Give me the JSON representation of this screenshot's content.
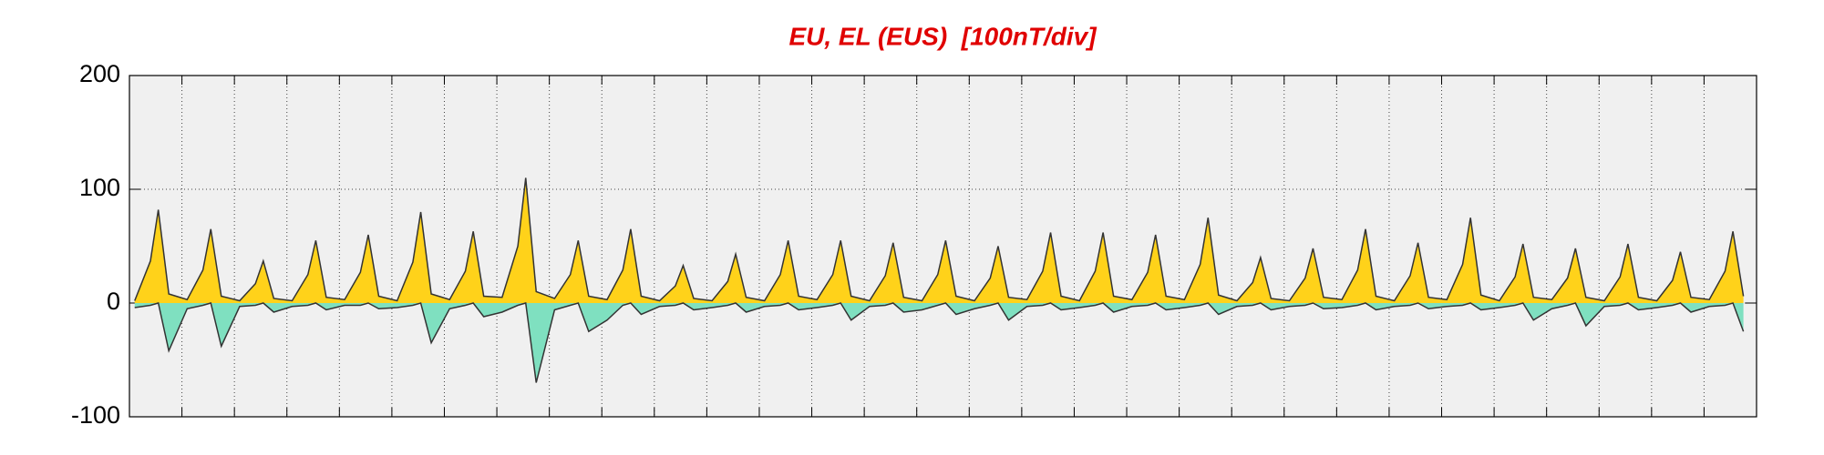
{
  "chart_data": {
    "type": "area",
    "title": "EU, EL (EUS)  [100nT/div]",
    "xlim": [
      0,
      31
    ],
    "xticks": [
      1,
      2,
      3,
      4,
      5,
      6,
      7,
      8,
      9,
      10,
      11,
      12,
      13,
      14,
      15,
      16,
      17,
      18,
      19,
      20,
      21,
      22,
      23,
      24,
      25,
      26,
      27,
      28,
      29,
      30
    ],
    "ylim": [
      -100,
      200
    ],
    "yticks": [
      -100,
      0,
      100,
      200
    ],
    "grid": true,
    "line_color": "#333333",
    "background": "#f0f0f0",
    "x": [
      0.1,
      0.4,
      0.55,
      0.75,
      1.1,
      1.4,
      1.55,
      1.75,
      2.1,
      2.4,
      2.55,
      2.75,
      3.1,
      3.4,
      3.55,
      3.75,
      4.1,
      4.4,
      4.55,
      4.75,
      5.1,
      5.4,
      5.55,
      5.75,
      6.1,
      6.4,
      6.55,
      6.75,
      7.1,
      7.4,
      7.55,
      7.75,
      8.1,
      8.4,
      8.55,
      8.75,
      9.1,
      9.4,
      9.55,
      9.75,
      10.1,
      10.4,
      10.55,
      10.75,
      11.1,
      11.4,
      11.55,
      11.75,
      12.1,
      12.4,
      12.55,
      12.75,
      13.1,
      13.4,
      13.55,
      13.75,
      14.1,
      14.4,
      14.55,
      14.75,
      15.1,
      15.4,
      15.55,
      15.75,
      16.1,
      16.4,
      16.55,
      16.75,
      17.1,
      17.4,
      17.55,
      17.75,
      18.1,
      18.4,
      18.55,
      18.75,
      19.1,
      19.4,
      19.55,
      19.75,
      20.1,
      20.4,
      20.55,
      20.75,
      21.1,
      21.4,
      21.55,
      21.75,
      22.1,
      22.4,
      22.55,
      22.75,
      23.1,
      23.4,
      23.55,
      23.75,
      24.1,
      24.4,
      24.55,
      24.75,
      25.1,
      25.4,
      25.55,
      25.75,
      26.1,
      26.4,
      26.55,
      26.75,
      27.1,
      27.4,
      27.55,
      27.75,
      28.1,
      28.4,
      28.55,
      28.75,
      29.1,
      29.4,
      29.55,
      29.75,
      30.1,
      30.4,
      30.55,
      30.75
    ],
    "series": [
      {
        "color": "#ffd21a",
        "values": [
          2,
          37,
          82,
          8,
          3,
          29,
          65,
          6,
          2,
          17,
          37,
          4,
          2,
          25,
          55,
          5,
          3,
          27,
          60,
          6,
          2,
          36,
          80,
          8,
          3,
          28,
          63,
          6,
          5,
          50,
          110,
          10,
          4,
          25,
          55,
          6,
          3,
          29,
          65,
          6,
          2,
          15,
          33,
          4,
          2,
          19,
          43,
          5,
          2,
          25,
          55,
          6,
          3,
          25,
          55,
          6,
          2,
          24,
          53,
          5,
          2,
          25,
          55,
          6,
          2,
          22,
          50,
          5,
          3,
          28,
          62,
          6,
          2,
          28,
          62,
          6,
          3,
          27,
          60,
          6,
          3,
          34,
          75,
          7,
          2,
          18,
          40,
          4,
          2,
          22,
          48,
          5,
          3,
          29,
          65,
          6,
          2,
          24,
          53,
          5,
          3,
          34,
          75,
          7,
          2,
          23,
          52,
          5,
          3,
          22,
          48,
          5,
          2,
          23,
          52,
          5,
          2,
          20,
          45,
          5,
          3,
          28,
          63,
          6
        ]
      },
      {
        "color": "#7fe0c0",
        "values": [
          -4,
          -2,
          0,
          -42,
          -5,
          -2,
          0,
          -38,
          -3,
          -2,
          0,
          -8,
          -3,
          -2,
          0,
          -6,
          -2,
          -2,
          0,
          -5,
          -4,
          -2,
          0,
          -35,
          -5,
          -2,
          0,
          -12,
          -8,
          -2,
          0,
          -70,
          -6,
          -2,
          0,
          -25,
          -15,
          -2,
          0,
          -10,
          -3,
          -2,
          0,
          -6,
          -4,
          -2,
          0,
          -8,
          -3,
          -2,
          0,
          -6,
          -4,
          -2,
          0,
          -15,
          -3,
          -2,
          0,
          -8,
          -6,
          -2,
          0,
          -10,
          -5,
          -2,
          0,
          -15,
          -3,
          -2,
          0,
          -6,
          -4,
          -2,
          0,
          -8,
          -3,
          -2,
          0,
          -6,
          -4,
          -2,
          0,
          -10,
          -3,
          -2,
          0,
          -6,
          -3,
          -2,
          0,
          -5,
          -4,
          -2,
          0,
          -6,
          -3,
          -2,
          0,
          -5,
          -3,
          -2,
          0,
          -6,
          -4,
          -2,
          0,
          -15,
          -5,
          -2,
          0,
          -20,
          -3,
          -2,
          0,
          -6,
          -4,
          -2,
          0,
          -8,
          -3,
          -2,
          0,
          -25
        ]
      }
    ]
  }
}
